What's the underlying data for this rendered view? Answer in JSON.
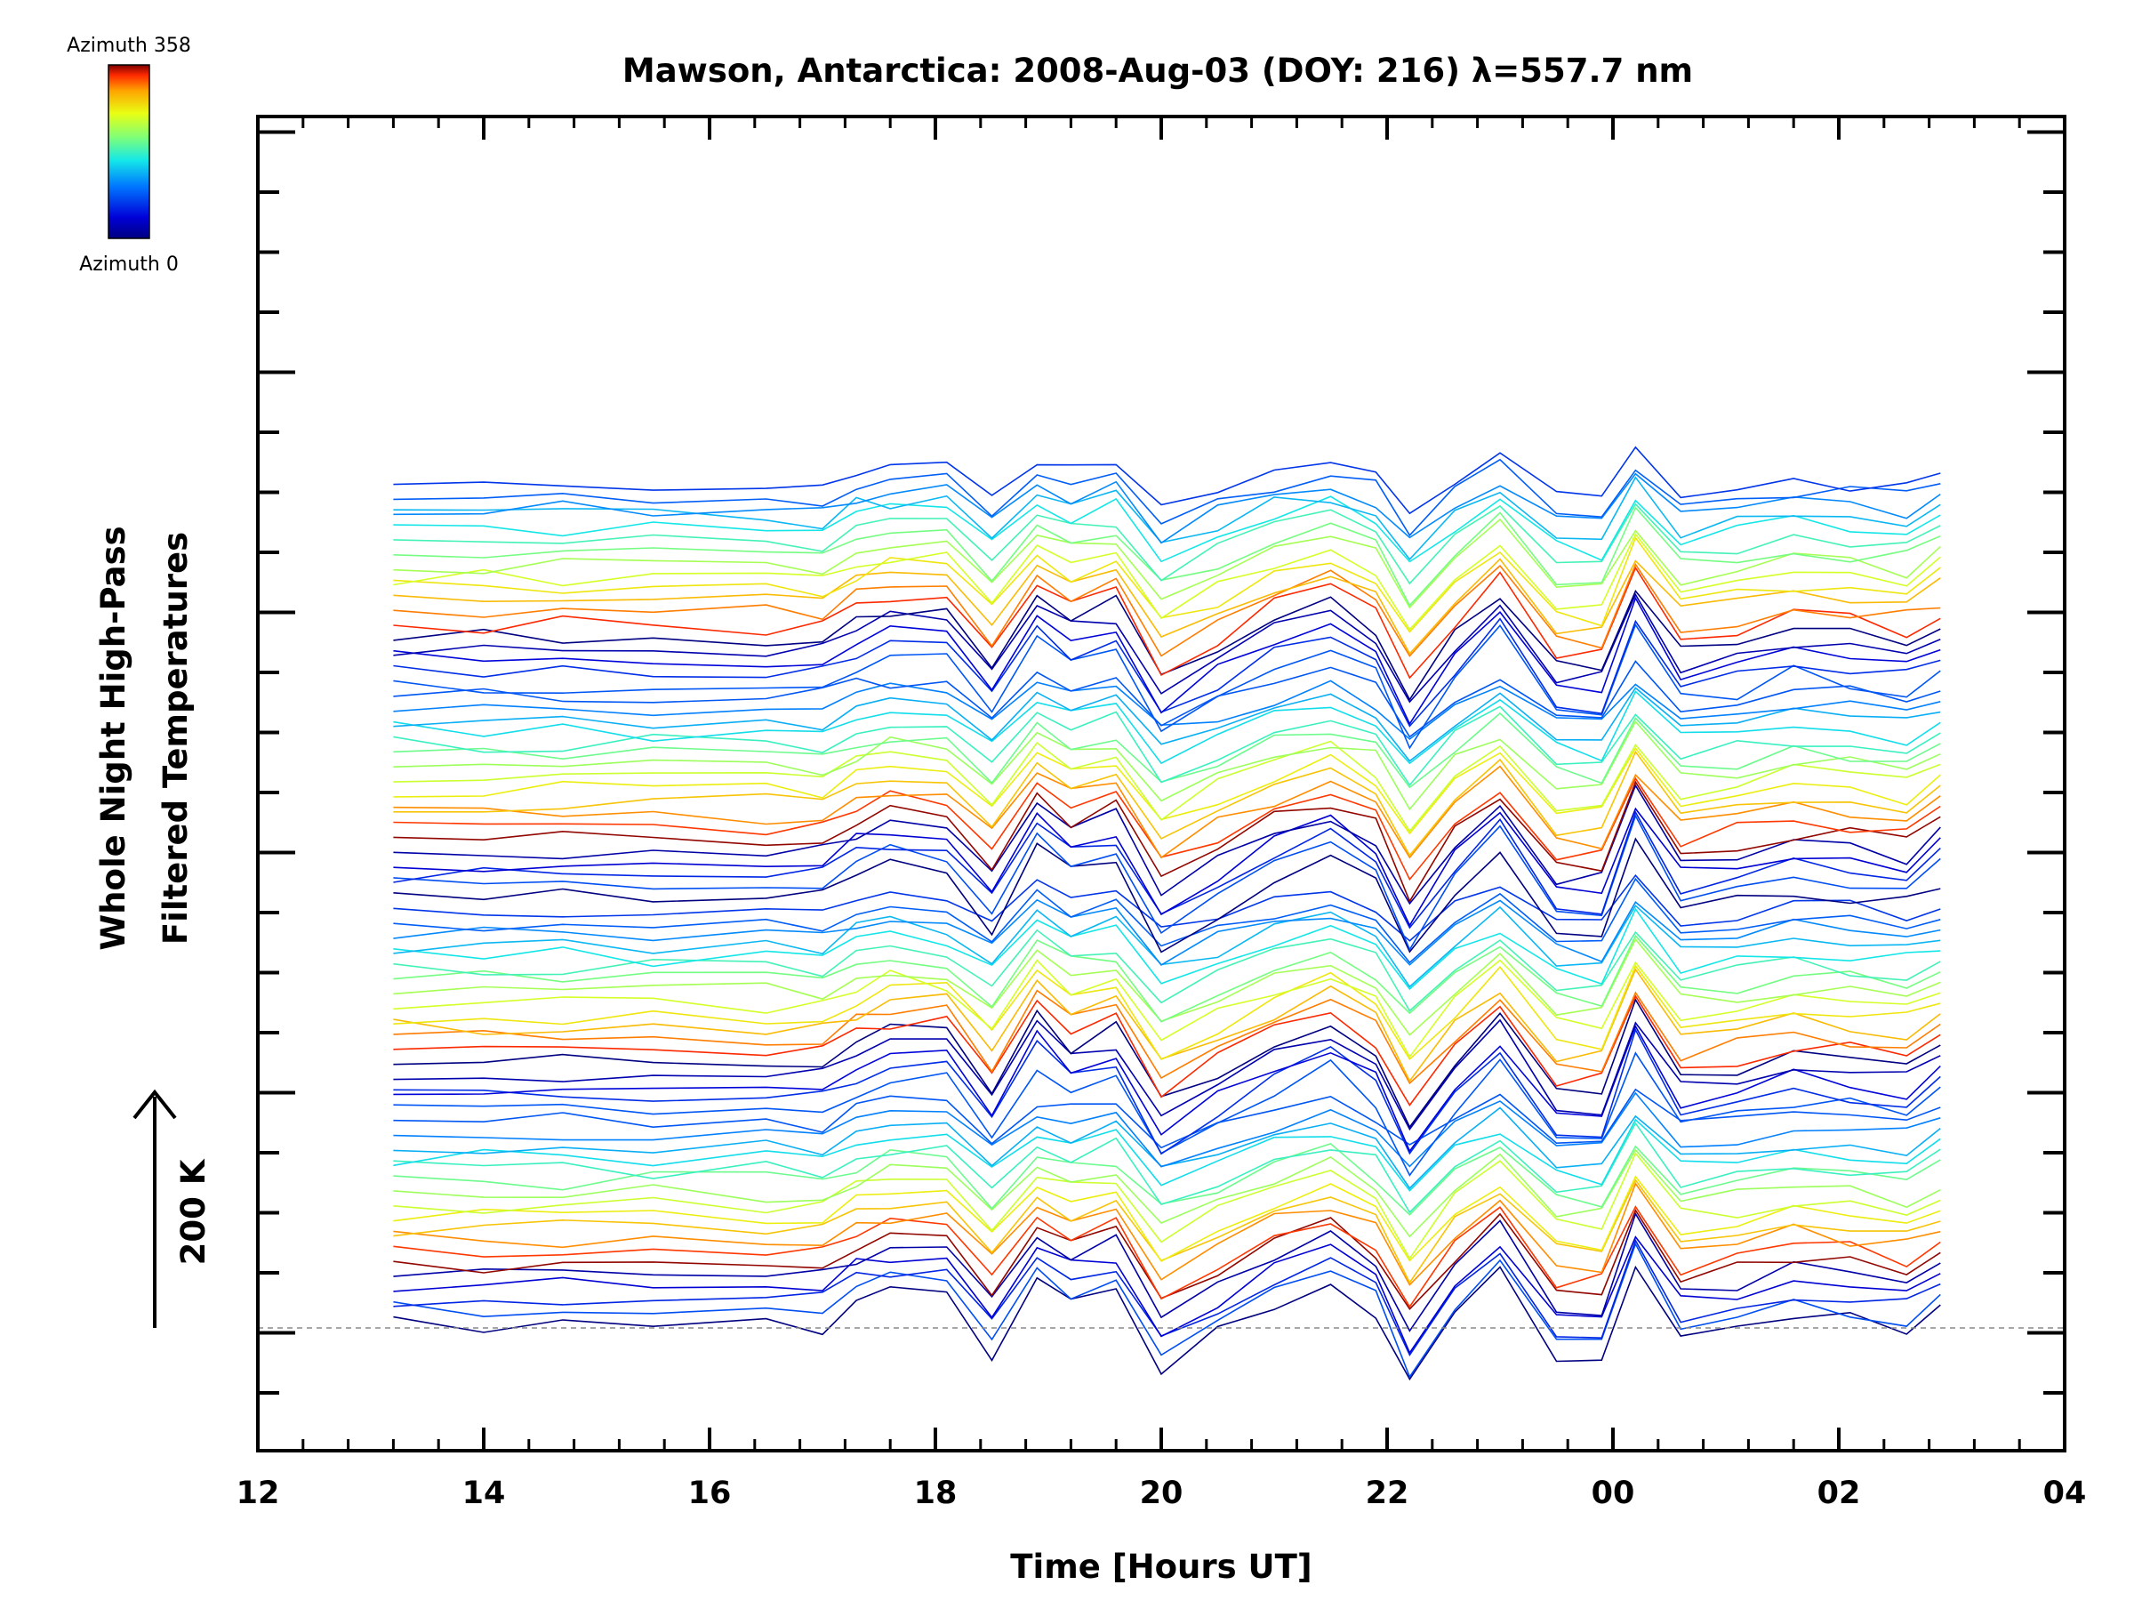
{
  "chart_data": {
    "type": "line",
    "title": "Mawson, Antarctica: 2008-Aug-03 (DOY: 216) λ=557.7 nm",
    "xlabel": "Time [Hours UT]",
    "ylabel_line1": "Whole Night High-Pass",
    "ylabel_line2": "Filtered Temperatures",
    "scale_label": "200 K",
    "x_range": [
      12,
      28
    ],
    "x_tick_labels": [
      "12",
      "14",
      "16",
      "18",
      "20",
      "22",
      "00",
      "02",
      "04"
    ],
    "colorbar": {
      "label_max": "Azimuth 358",
      "label_min": "Azimuth 0",
      "colors": [
        "#7f0000",
        "#ff2a00",
        "#ffa500",
        "#e8ff14",
        "#7dff7a",
        "#14e8e8",
        "#0077ff",
        "#0000d8",
        "#000080"
      ]
    },
    "x_times": [
      13.2,
      14.0,
      14.7,
      15.5,
      16.5,
      17.0,
      17.3,
      17.6,
      18.1,
      18.5,
      18.9,
      19.2,
      19.6,
      20.0,
      20.5,
      21.0,
      21.5,
      21.9,
      22.2,
      22.6,
      23.0,
      23.5,
      23.9,
      24.2,
      24.6,
      25.1,
      25.6,
      26.1,
      26.6,
      26.9
    ],
    "series_pattern": [
      0.05,
      -0.02,
      0.06,
      0.01,
      0.0,
      -0.03,
      0.35,
      0.55,
      0.5,
      -0.45,
      0.8,
      0.35,
      0.6,
      -0.75,
      -0.2,
      0.35,
      0.7,
      0.2,
      -1.0,
      0.1,
      0.85,
      -0.5,
      -0.55,
      1.0,
      -0.25,
      -0.1,
      0.15,
      0.05,
      -0.1,
      0.3
    ],
    "groups": 4,
    "lines_per_group": 18,
    "reference_line": "baseline (dashed)"
  }
}
